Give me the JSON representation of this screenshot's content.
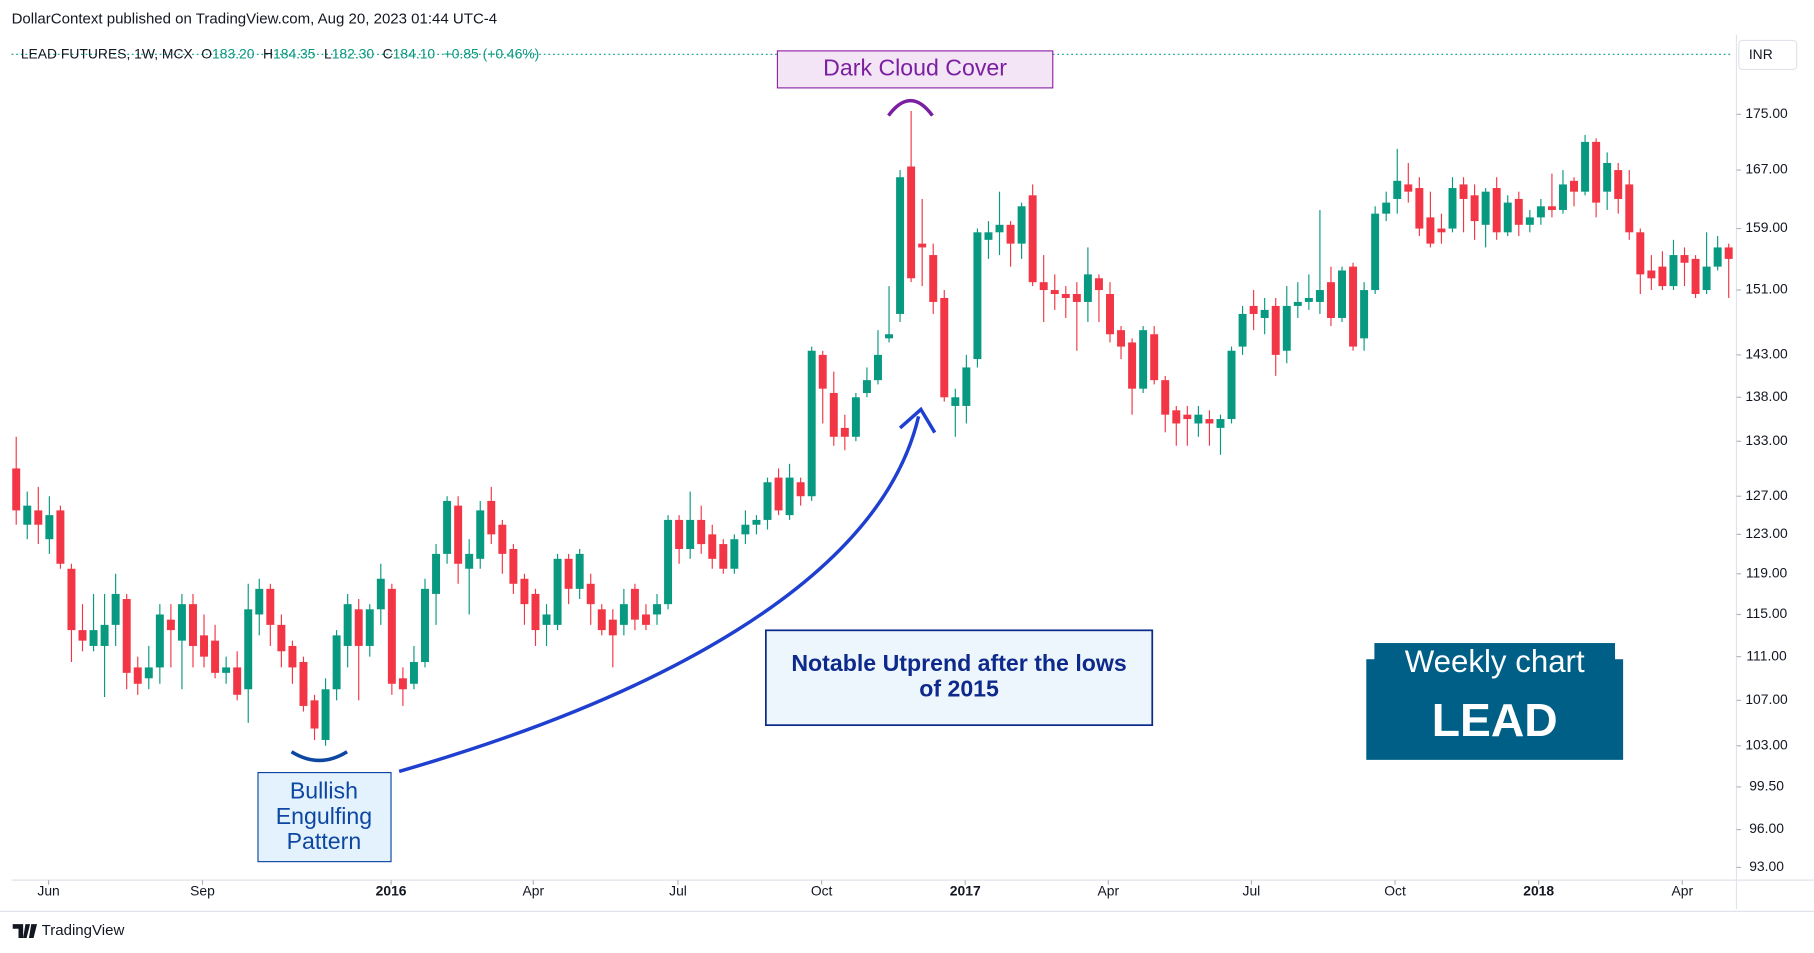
{
  "header": {
    "published": "DollarContext published on TradingView.com, Aug 20, 2023 01:44 UTC-4"
  },
  "legend": {
    "symbol": "LEAD FUTURES, 1W, MCX",
    "ohlc": [
      {
        "key": "O",
        "value": "183.20"
      },
      {
        "key": "H",
        "value": "184.35"
      },
      {
        "key": "L",
        "value": "182.30"
      },
      {
        "key": "C",
        "value": "184.10"
      }
    ],
    "change": "+0.85 (+0.46%)"
  },
  "currency": "INR",
  "annotations": {
    "top": "Dark Cloud Cover",
    "bottom": [
      "Bullish",
      "Engulfing",
      "Pattern"
    ],
    "trend": [
      "Notable Utprend after the lows",
      "of 2015"
    ],
    "badge": {
      "subtitle": "Weekly chart",
      "title": "LEAD"
    }
  },
  "footer": {
    "brand": "TradingView"
  },
  "chart_data": {
    "type": "candlestick",
    "log_scale": true,
    "grid": false,
    "up_color": "#089981",
    "down_color": "#f23645",
    "xlim": [
      -0.42,
      155.6
    ],
    "xticks": [
      {
        "value": 2.93,
        "label": "Jun"
      },
      {
        "value": 16.86,
        "label": "Sep"
      },
      {
        "value": 33.93,
        "label": "2016"
      },
      {
        "value": 46.8,
        "label": "Apr"
      },
      {
        "value": 59.9,
        "label": "Jul"
      },
      {
        "value": 72.9,
        "label": "Oct"
      },
      {
        "value": 85.9,
        "label": "2017"
      },
      {
        "value": 98.85,
        "label": "Apr"
      },
      {
        "value": 111.8,
        "label": "Jul"
      },
      {
        "value": 124.8,
        "label": "Oct"
      },
      {
        "value": 137.8,
        "label": "2018"
      },
      {
        "value": 150.8,
        "label": "Apr"
      }
    ],
    "ylim": [
      92.1,
      187.1
    ],
    "yticks": [
      {
        "value": 175,
        "label": "175.00"
      },
      {
        "value": 167,
        "label": "167.00"
      },
      {
        "value": 159,
        "label": "159.00"
      },
      {
        "value": 151,
        "label": "151.00"
      },
      {
        "value": 143,
        "label": "143.00"
      },
      {
        "value": 138,
        "label": "138.00"
      },
      {
        "value": 133,
        "label": "133.00"
      },
      {
        "value": 127,
        "label": "127.00"
      },
      {
        "value": 123,
        "label": "123.00"
      },
      {
        "value": 119,
        "label": "119.00"
      },
      {
        "value": 115,
        "label": "115.00"
      },
      {
        "value": 111,
        "label": "111.00"
      },
      {
        "value": 107,
        "label": "107.00"
      },
      {
        "value": 103,
        "label": "103.00"
      },
      {
        "value": 99.5,
        "label": "99.50"
      },
      {
        "value": 96,
        "label": "96.00"
      },
      {
        "value": 93,
        "label": "93.00"
      }
    ],
    "open": [
      130,
      124,
      125.5,
      122.5,
      125.5,
      119.5,
      113.5,
      112,
      112,
      114,
      116.5,
      110,
      109,
      110,
      114.5,
      112.5,
      116,
      113,
      112.5,
      109.5,
      110,
      108,
      115,
      117.5,
      114,
      112,
      110.5,
      107,
      103.5,
      108,
      112,
      115.5,
      112,
      115.5,
      117.5,
      109,
      108.5,
      110.5,
      117,
      121,
      126,
      119.5,
      120.5,
      126.5,
      124,
      121.5,
      118.5,
      117,
      114,
      114,
      120.5,
      117.5,
      118,
      115.5,
      114.5,
      114,
      117.5,
      115,
      115,
      116,
      124.5,
      121.5,
      124.5,
      123,
      122,
      119.5,
      123,
      124,
      124.5,
      129,
      125,
      128.5,
      127,
      143,
      138.5,
      134.5,
      133.5,
      138.5,
      140,
      145,
      148,
      167.5,
      157,
      155.5,
      150,
      137,
      137,
      142.5,
      157.5,
      158.5,
      159.5,
      157,
      163.5,
      152,
      151,
      150.5,
      150.5,
      149.5,
      152.5,
      150.5,
      146,
      144.5,
      139,
      145.5,
      140,
      136.5,
      136,
      135,
      135.5,
      134.5,
      135.5,
      144,
      149,
      147.5,
      149,
      143.5,
      149,
      149.5,
      149.5,
      152,
      147.5,
      154,
      145,
      151,
      161,
      163,
      165,
      164.5,
      160.5,
      159,
      159,
      165,
      163.5,
      159.5,
      164.5,
      158.5,
      163,
      159.5,
      160.5,
      162,
      161.5,
      165.5,
      164,
      171,
      164,
      167,
      165,
      158.5,
      153.5,
      154,
      151.5,
      155.5,
      155,
      151,
      154,
      156.5
    ],
    "high": [
      133.5,
      127.5,
      128,
      127,
      126,
      120,
      116,
      117,
      117,
      119,
      117,
      111,
      112,
      116,
      116,
      117,
      117,
      115,
      114,
      111,
      111.5,
      118,
      118.5,
      118,
      115,
      112.5,
      111,
      107.5,
      109,
      113.5,
      117,
      116.5,
      116,
      120,
      118,
      110,
      112,
      118.5,
      122,
      127,
      127,
      122.5,
      126.5,
      128,
      124.5,
      122,
      119,
      117.5,
      116,
      121,
      121,
      121.5,
      119,
      116,
      115.5,
      117.5,
      118,
      116,
      117,
      125,
      125,
      127.5,
      126,
      124,
      122.5,
      123,
      125.5,
      125,
      129,
      130,
      130.5,
      129,
      144,
      143.5,
      141,
      136,
      138.5,
      141.5,
      146,
      151.5,
      167,
      175.5,
      163,
      157,
      151,
      139,
      143,
      159,
      160,
      164,
      160,
      162.5,
      165,
      155.5,
      153,
      151.5,
      152,
      156.5,
      153,
      152,
      146.5,
      145,
      146.5,
      146.5,
      140.5,
      137,
      137,
      137,
      136.5,
      136,
      144,
      149,
      151,
      150,
      150,
      151.5,
      152,
      153,
      161.5,
      154,
      154,
      154.5,
      152,
      162,
      164,
      170,
      168,
      166,
      164,
      161,
      166,
      166,
      165,
      164.5,
      166,
      163.5,
      164,
      161.5,
      163,
      166.5,
      167,
      166,
      172,
      171.5,
      169.5,
      168,
      167,
      159,
      155.5,
      156,
      157.5,
      156.5,
      155.5,
      158.5,
      158,
      157
    ],
    "low": [
      124,
      122.5,
      122,
      121,
      119.5,
      110.5,
      111.5,
      111.5,
      107.3,
      112,
      108,
      107.5,
      108,
      108.5,
      110,
      108,
      110,
      110,
      109,
      108.5,
      107,
      105,
      113,
      112,
      110,
      108.5,
      106,
      103.5,
      103,
      107,
      110,
      107,
      111,
      114,
      107.5,
      106.5,
      108,
      110,
      114,
      120,
      118,
      115,
      119.5,
      122,
      119,
      117,
      114,
      112,
      112,
      113.5,
      116,
      116.5,
      114,
      113,
      110,
      113,
      113.5,
      113.5,
      114,
      115.5,
      120,
      120.5,
      121,
      119.5,
      119,
      119,
      122,
      123,
      123.5,
      125,
      124.5,
      126,
      126.5,
      135,
      132.5,
      132,
      133,
      138,
      139.5,
      144.5,
      147,
      152,
      151.5,
      148,
      137.5,
      133.5,
      135,
      141.5,
      155,
      155.5,
      154,
      155,
      151.5,
      147,
      148.5,
      147.5,
      143.5,
      147,
      147,
      144.5,
      142.5,
      136,
      138.5,
      139.5,
      134,
      132.5,
      132.5,
      133.5,
      132.5,
      131.5,
      135,
      143,
      146,
      145.5,
      140.5,
      142,
      147.5,
      148.5,
      148,
      146.5,
      147,
      143.5,
      143.5,
      150.5,
      160,
      161,
      162.5,
      158,
      156.5,
      157,
      158.5,
      158.5,
      157.5,
      156.5,
      157.5,
      158,
      158,
      158.5,
      159.5,
      160.5,
      161,
      162,
      163.5,
      160.5,
      161.5,
      161,
      157.5,
      150.5,
      151,
      151,
      151,
      151.5,
      150,
      150.5,
      153.5,
      150
    ],
    "close": [
      125.5,
      126,
      124,
      125,
      120,
      113.5,
      112.5,
      113.5,
      114,
      117,
      109.5,
      108.5,
      110,
      115,
      113.5,
      116,
      112,
      111,
      109.5,
      110,
      107.5,
      115.5,
      117.5,
      114,
      111.5,
      110,
      106.5,
      104.5,
      108,
      113,
      116,
      112,
      115.5,
      118.5,
      108.5,
      108,
      110.5,
      117.5,
      121,
      126.5,
      120,
      121,
      125.5,
      123,
      121,
      118,
      116,
      113.5,
      115,
      120.5,
      117.5,
      121,
      116,
      113.5,
      113,
      116,
      114.5,
      114,
      116,
      124.5,
      121.5,
      124.5,
      122,
      120.5,
      119.5,
      122.5,
      124,
      124.5,
      128.5,
      125.5,
      129,
      127,
      143.5,
      139,
      133.5,
      133.5,
      138,
      140,
      143,
      145.5,
      166,
      152.5,
      156.5,
      149.5,
      138,
      138,
      141.5,
      158.5,
      158.5,
      159.5,
      157,
      162,
      152,
      151,
      150.5,
      150,
      149.5,
      153,
      151,
      145.5,
      144,
      139,
      146,
      140,
      136,
      135,
      135.5,
      136,
      135,
      135.5,
      143.5,
      148,
      148,
      148.5,
      143,
      149,
      149.5,
      150,
      151,
      147.5,
      153.5,
      144,
      151,
      161,
      162.5,
      165.5,
      164,
      159,
      157,
      158.5,
      164.5,
      163,
      160,
      164,
      158.5,
      162.5,
      159.5,
      160.5,
      162,
      161.5,
      165,
      164,
      171,
      162.5,
      168,
      163,
      158.5,
      153,
      152.5,
      151.5,
      155.5,
      154.5,
      150.5,
      154,
      156.5,
      155
    ]
  }
}
